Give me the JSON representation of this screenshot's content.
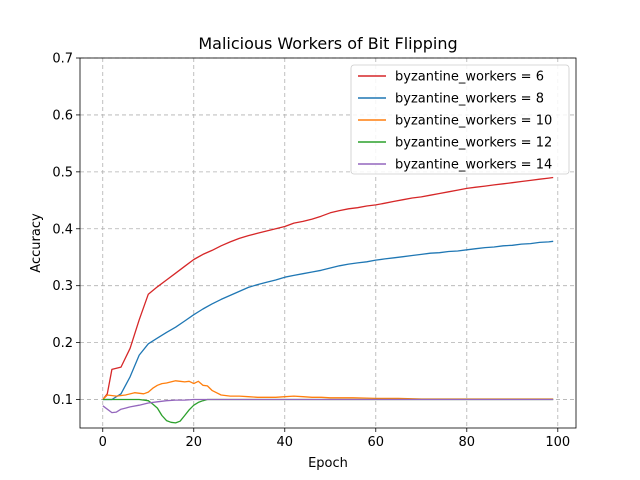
{
  "chart_data": {
    "type": "line",
    "title": "Malicious Workers of Bit Flipping",
    "xlabel": "Epoch",
    "ylabel": "Accuracy",
    "xlim": [
      -5,
      104
    ],
    "ylim": [
      0.05,
      0.7
    ],
    "xticks": [
      0,
      20,
      40,
      60,
      80,
      100
    ],
    "yticks": [
      0.1,
      0.2,
      0.3,
      0.4,
      0.5,
      0.6,
      0.7
    ],
    "xtick_labels": [
      "0",
      "20",
      "40",
      "60",
      "80",
      "100"
    ],
    "ytick_labels": [
      "0.1",
      "0.2",
      "0.3",
      "0.4",
      "0.5",
      "0.6",
      "0.7"
    ],
    "grid": true,
    "legend_position": "top-right",
    "series": [
      {
        "name": "byzantine_workers = 6",
        "color": "#d62728",
        "x": [
          0,
          1,
          2,
          4,
          6,
          8,
          10,
          12,
          14,
          16,
          18,
          20,
          22,
          24,
          26,
          28,
          30,
          32,
          34,
          36,
          38,
          40,
          42,
          44,
          46,
          48,
          50,
          52,
          54,
          56,
          58,
          60,
          62,
          64,
          66,
          68,
          70,
          72,
          74,
          76,
          78,
          80,
          82,
          84,
          86,
          88,
          90,
          92,
          94,
          96,
          98,
          99
        ],
        "y": [
          0.1,
          0.11,
          0.153,
          0.157,
          0.19,
          0.24,
          0.285,
          0.298,
          0.31,
          0.322,
          0.334,
          0.346,
          0.355,
          0.362,
          0.37,
          0.377,
          0.383,
          0.388,
          0.392,
          0.396,
          0.4,
          0.404,
          0.41,
          0.413,
          0.417,
          0.422,
          0.428,
          0.432,
          0.435,
          0.437,
          0.44,
          0.442,
          0.445,
          0.448,
          0.451,
          0.454,
          0.456,
          0.459,
          0.462,
          0.465,
          0.468,
          0.471,
          0.473,
          0.475,
          0.477,
          0.479,
          0.481,
          0.483,
          0.485,
          0.487,
          0.489,
          0.49
        ]
      },
      {
        "name": "byzantine_workers = 8",
        "color": "#1f77b4",
        "x": [
          0,
          2,
          4,
          6,
          8,
          10,
          12,
          14,
          16,
          18,
          20,
          22,
          24,
          26,
          28,
          30,
          32,
          34,
          36,
          38,
          40,
          42,
          44,
          46,
          48,
          50,
          52,
          54,
          56,
          58,
          60,
          62,
          64,
          66,
          68,
          70,
          72,
          74,
          76,
          78,
          80,
          82,
          84,
          86,
          88,
          90,
          92,
          94,
          96,
          98,
          99
        ],
        "y": [
          0.1,
          0.1,
          0.11,
          0.14,
          0.178,
          0.198,
          0.208,
          0.218,
          0.227,
          0.238,
          0.249,
          0.259,
          0.268,
          0.276,
          0.283,
          0.29,
          0.297,
          0.302,
          0.306,
          0.31,
          0.315,
          0.318,
          0.321,
          0.324,
          0.327,
          0.331,
          0.335,
          0.338,
          0.34,
          0.342,
          0.345,
          0.347,
          0.349,
          0.351,
          0.353,
          0.355,
          0.357,
          0.358,
          0.36,
          0.361,
          0.363,
          0.365,
          0.367,
          0.368,
          0.37,
          0.371,
          0.373,
          0.374,
          0.376,
          0.377,
          0.378
        ]
      },
      {
        "name": "byzantine_workers = 10",
        "color": "#ff7f0e",
        "x": [
          0,
          1,
          3,
          5,
          7,
          9,
          10,
          11,
          12,
          13,
          14,
          15,
          16,
          17,
          18,
          19,
          20,
          21,
          22,
          23,
          24,
          25,
          26,
          28,
          30,
          32,
          34,
          36,
          38,
          40,
          42,
          44,
          46,
          48,
          50,
          55,
          60,
          65,
          70,
          75,
          80,
          85,
          90,
          95,
          99
        ],
        "y": [
          0.1,
          0.108,
          0.106,
          0.108,
          0.112,
          0.11,
          0.113,
          0.12,
          0.125,
          0.128,
          0.129,
          0.131,
          0.133,
          0.132,
          0.131,
          0.132,
          0.128,
          0.132,
          0.125,
          0.124,
          0.116,
          0.112,
          0.108,
          0.106,
          0.106,
          0.105,
          0.104,
          0.104,
          0.104,
          0.105,
          0.106,
          0.105,
          0.104,
          0.104,
          0.103,
          0.103,
          0.102,
          0.102,
          0.101,
          0.101,
          0.101,
          0.101,
          0.101,
          0.101,
          0.101
        ]
      },
      {
        "name": "byzantine_workers = 12",
        "color": "#2ca02c",
        "x": [
          0,
          2,
          4,
          6,
          8,
          10,
          11,
          12,
          13,
          14,
          15,
          16,
          17,
          18,
          19,
          20,
          21,
          22,
          23,
          25,
          30,
          40,
          50,
          60,
          70,
          80,
          90,
          99
        ],
        "y": [
          0.1,
          0.1,
          0.1,
          0.1,
          0.1,
          0.098,
          0.092,
          0.085,
          0.072,
          0.063,
          0.06,
          0.059,
          0.062,
          0.072,
          0.082,
          0.09,
          0.095,
          0.098,
          0.1,
          0.1,
          0.1,
          0.1,
          0.1,
          0.1,
          0.1,
          0.1,
          0.1,
          0.1
        ]
      },
      {
        "name": "byzantine_workers = 14",
        "color": "#9467bd",
        "x": [
          0,
          1,
          2,
          3,
          4,
          5,
          6,
          8,
          10,
          12,
          14,
          16,
          18,
          20,
          25,
          30,
          40,
          50,
          60,
          70,
          80,
          90,
          99
        ],
        "y": [
          0.089,
          0.083,
          0.077,
          0.078,
          0.083,
          0.085,
          0.087,
          0.09,
          0.094,
          0.096,
          0.098,
          0.099,
          0.099,
          0.1,
          0.1,
          0.1,
          0.1,
          0.1,
          0.1,
          0.1,
          0.1,
          0.1,
          0.1
        ]
      }
    ]
  }
}
